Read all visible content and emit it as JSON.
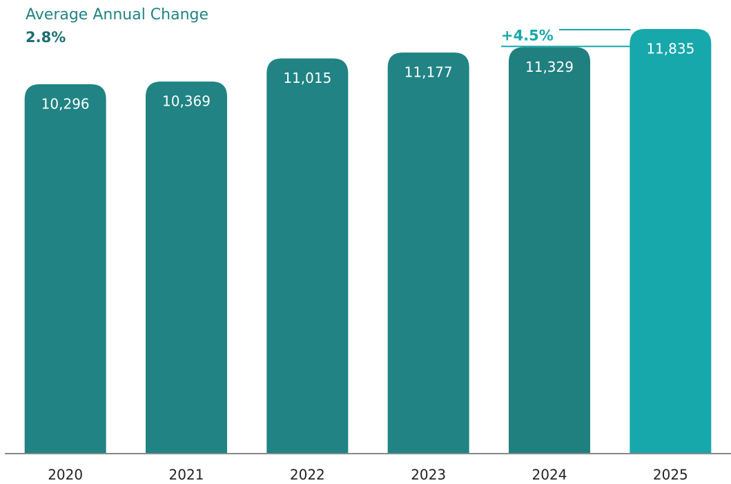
{
  "chart_data": {
    "type": "bar",
    "title": "Average Annual Change",
    "subtitle": "2.8%",
    "annotation": "+4.5%",
    "categories": [
      "2020",
      "2021",
      "2022",
      "2023",
      "2024",
      "2025"
    ],
    "values": [
      10296,
      10369,
      11015,
      11177,
      11329,
      11835
    ],
    "value_labels": [
      "10,296",
      "10,369",
      "11,015",
      "11,177",
      "11,329",
      "11,835"
    ],
    "colors": [
      "#218383",
      "#218383",
      "#218383",
      "#218383",
      "#207f7f",
      "#17a8ab"
    ],
    "ylim": [
      0,
      12450
    ]
  }
}
